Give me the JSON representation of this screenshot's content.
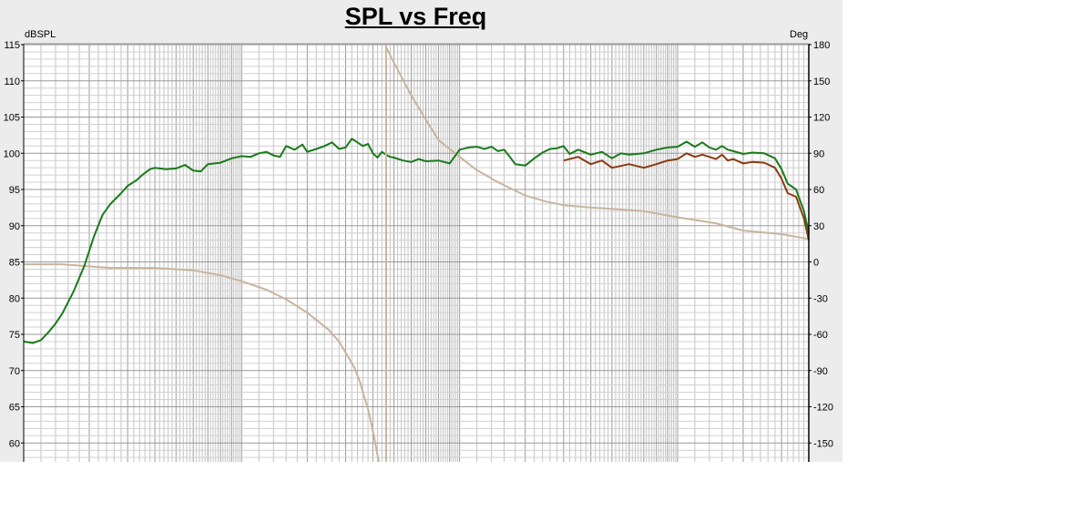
{
  "chart_data": {
    "type": "line",
    "title": "SPL vs Freq",
    "left_axis_unit": "dBSPL",
    "right_axis_unit": "Deg",
    "ylim": [
      57,
      115
    ],
    "y2lim": [
      -172,
      180
    ],
    "x_scale": "log",
    "xlim": [
      10,
      40000
    ],
    "grid": true,
    "y_ticks": [
      115,
      110,
      105,
      100,
      95,
      90,
      85,
      80,
      75,
      70,
      65,
      60
    ],
    "y2_ticks": [
      180,
      150,
      120,
      90,
      60,
      30,
      0,
      -30,
      -60,
      -90,
      -120,
      -150
    ],
    "series": [
      {
        "color": "#c8b49e",
        "axis": "right",
        "x": [
          10,
          15,
          25,
          40,
          60,
          80,
          100,
          130,
          160,
          200,
          250,
          280,
          300,
          330,
          350,
          360,
          380,
          400,
          420,
          432
        ],
        "values": [
          -2,
          -2,
          -5,
          -5,
          -7,
          -11,
          -16,
          -23,
          -31,
          -42,
          -56,
          -66,
          -75,
          -88,
          -100,
          -108,
          -122,
          -140,
          -160,
          -172
        ]
      },
      {
        "color": "#c8b49e",
        "axis": "right",
        "x": [
          460,
          500,
          600,
          700,
          800,
          1000,
          1200,
          1500,
          2000,
          2500,
          3000,
          4000,
          5000,
          7000,
          10000,
          15000,
          20000,
          30000,
          40000
        ],
        "values": [
          178,
          165,
          138,
          118,
          101,
          87,
          76,
          66,
          55,
          50,
          47,
          45,
          44,
          42,
          37,
          32,
          26,
          23,
          19
        ]
      },
      {
        "color": "#8b3a0f",
        "axis": "left",
        "x": [
          3000,
          3500,
          4000,
          4500,
          5000,
          6000,
          7000,
          8000,
          9000,
          10000,
          11000,
          12000,
          13000,
          14000,
          15000,
          16000,
          17000,
          18000,
          20000,
          22000,
          25000,
          28000,
          30000,
          32000,
          35000,
          38000,
          40000
        ],
        "values": [
          99.0,
          99.5,
          98.5,
          99.0,
          98.0,
          98.5,
          98.0,
          98.5,
          99.0,
          99.2,
          100.0,
          99.5,
          99.8,
          99.5,
          99.2,
          99.8,
          99.0,
          99.2,
          98.6,
          98.8,
          98.7,
          98.0,
          96.5,
          94.5,
          94.0,
          91.0,
          88.0
        ]
      },
      {
        "color": "#1a7a1a",
        "axis": "left",
        "x": [
          10,
          11,
          12,
          13,
          14,
          15,
          17,
          19,
          21,
          23,
          25,
          28,
          30,
          33,
          35,
          38,
          40,
          45,
          50,
          55,
          60,
          65,
          70,
          80,
          90,
          100,
          110,
          120,
          130,
          140,
          150,
          160,
          175,
          190,
          200,
          220,
          240,
          260,
          280,
          300,
          320,
          340,
          360,
          380,
          400,
          420,
          440,
          460,
          480,
          500,
          550,
          600,
          650,
          700,
          800,
          900,
          1000,
          1100,
          1200,
          1300,
          1400,
          1500,
          1600,
          1700,
          1800,
          2000,
          2200,
          2400,
          2600,
          2800,
          3000,
          3200,
          3500,
          4000,
          4500,
          5000,
          5500,
          6000,
          7000,
          8000,
          9000,
          10000,
          11000,
          12000,
          13000,
          14000,
          15000,
          16000,
          17000,
          18000,
          20000,
          22000,
          25000,
          28000,
          30000,
          32000,
          35000,
          38000,
          40000
        ],
        "values": [
          74.0,
          73.8,
          74.2,
          75.3,
          76.5,
          77.8,
          81.0,
          84.5,
          88.5,
          91.5,
          93.0,
          94.5,
          95.5,
          96.3,
          97.0,
          97.8,
          98.0,
          97.8,
          97.9,
          98.4,
          97.6,
          97.5,
          98.5,
          98.7,
          99.3,
          99.6,
          99.5,
          100.0,
          100.2,
          99.7,
          99.5,
          101.0,
          100.5,
          101.2,
          100.2,
          100.6,
          101.0,
          101.5,
          100.6,
          100.8,
          102.0,
          101.5,
          101.0,
          101.3,
          100.0,
          99.4,
          100.2,
          99.8,
          99.5,
          99.4,
          99.0,
          98.8,
          99.2,
          98.9,
          99.0,
          98.6,
          100.5,
          100.8,
          100.9,
          100.6,
          100.9,
          100.3,
          100.5,
          99.5,
          98.5,
          98.3,
          99.3,
          100.1,
          100.6,
          100.7,
          101.0,
          99.9,
          100.5,
          99.8,
          100.2,
          99.3,
          100.0,
          99.8,
          100.0,
          100.5,
          100.8,
          100.9,
          101.6,
          100.9,
          101.5,
          100.8,
          100.5,
          101.0,
          100.5,
          100.3,
          99.9,
          100.1,
          100.0,
          99.3,
          97.8,
          95.8,
          95.0,
          92.0,
          89.0
        ]
      }
    ]
  }
}
